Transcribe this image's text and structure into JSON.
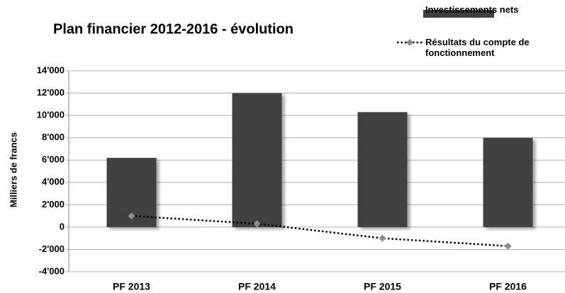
{
  "chart_data": {
    "type": "bar",
    "title": "Plan financier 2012-2016 - évolution",
    "y_label": "Milliers de francs",
    "categories": [
      "PF 2013",
      "PF 2014",
      "PF 2015",
      "PF 2016"
    ],
    "series": [
      {
        "name": "Investissements nets",
        "type": "bar",
        "color": "#404040",
        "values": [
          6200,
          12000,
          10300,
          8000
        ]
      },
      {
        "name": "Résultats du compte de fonctionnement",
        "type": "line",
        "color": "#8c8c8c",
        "values": [
          1000,
          300,
          -1000,
          -1700
        ]
      }
    ],
    "ylim": [
      -4000,
      14000
    ],
    "yticks": [
      {
        "value": -4000,
        "label": "-4'000"
      },
      {
        "value": -2000,
        "label": "-2'000"
      },
      0,
      {
        "value": 2000,
        "label": "2'000"
      },
      {
        "value": 4000,
        "label": "4'000"
      },
      {
        "value": 6000,
        "label": "6'000"
      },
      {
        "value": 8000,
        "label": "8'000"
      },
      {
        "value": 10000,
        "label": "10'000"
      },
      {
        "value": 12000,
        "label": "12'000"
      },
      {
        "value": 14000,
        "label": "14'000"
      }
    ],
    "grid": true,
    "legend": "top-right"
  }
}
